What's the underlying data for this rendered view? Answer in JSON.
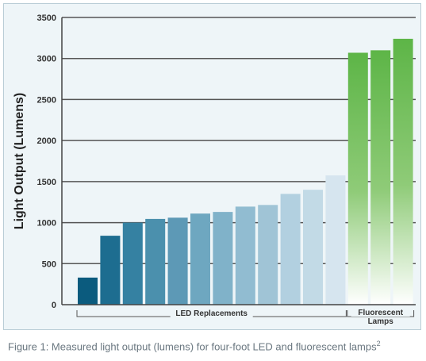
{
  "chart_data": {
    "type": "bar",
    "ylabel": "Light Output (Lumens)",
    "ylim": [
      0,
      3500
    ],
    "yticks": [
      0,
      500,
      1000,
      1500,
      2000,
      2500,
      3000,
      3500
    ],
    "grid": true,
    "values": [
      330,
      840,
      1000,
      1045,
      1060,
      1110,
      1130,
      1195,
      1215,
      1350,
      1400,
      1575,
      3070,
      3100,
      3240
    ],
    "bar_colors": [
      "#0b5b7e",
      "#1d6d90",
      "#3581a2",
      "#4b90ad",
      "#5d99b6",
      "#6ea7c0",
      "#80b2c9",
      "#91bcd1",
      "#a0c4d6",
      "#b2d0e0",
      "#c2dae6",
      "#d6e5ef",
      "#62b84a",
      "#62b84a",
      "#62b84a"
    ],
    "groups": [
      {
        "label": "LED Replacements",
        "lines": [
          "LED Replacements"
        ],
        "from": 0,
        "to": 11
      },
      {
        "label": "Fluorescent Lamps",
        "lines": [
          "Fluorescent",
          "Lamps"
        ],
        "from": 12,
        "to": 14
      }
    ]
  },
  "caption": {
    "text": "Figure 1: Measured light output (lumens) for four-foot LED and fluorescent lamps",
    "superscript": "2"
  }
}
